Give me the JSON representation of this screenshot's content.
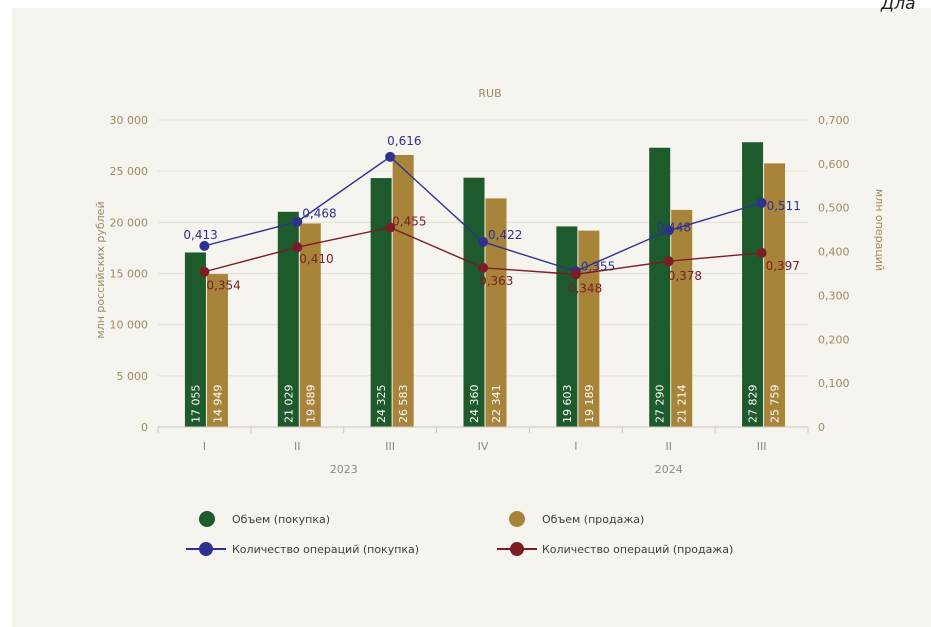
{
  "header": {
    "corner_text": "Дла"
  },
  "colors": {
    "volume_buy": "#1d5a2c",
    "volume_sell": "#a8843a",
    "count_buy": "#2e3192",
    "count_sell": "#7a1e23",
    "grid": "#e4e0d6"
  },
  "chart_data": {
    "type": "bar",
    "unit_label": "RUB",
    "categories": [
      "I",
      "II",
      "III",
      "IV",
      "I",
      "II",
      "III"
    ],
    "groups": [
      {
        "label": "2023",
        "span": [
          0,
          3
        ]
      },
      {
        "label": "2024",
        "span": [
          4,
          6
        ]
      }
    ],
    "y_left": {
      "label": "млн российских рублей",
      "ylim": [
        0,
        30000
      ],
      "ticks": [
        0,
        5000,
        10000,
        15000,
        20000,
        25000,
        30000
      ],
      "tick_labels": [
        "0",
        "5 000",
        "10 000",
        "15 000",
        "20 000",
        "25 000",
        "30 000"
      ]
    },
    "y_right": {
      "label": "млн операций",
      "ylim": [
        0,
        0.7
      ],
      "ticks": [
        0,
        0.1,
        0.2,
        0.3,
        0.4,
        0.5,
        0.6,
        0.7
      ],
      "tick_labels": [
        "0",
        "0,100",
        "0,200",
        "0,300",
        "0,400",
        "0,500",
        "0,600",
        "0,700"
      ]
    },
    "bar_series": [
      {
        "name": "Объем (покупка)",
        "values": [
          17055,
          21029,
          24325,
          24360,
          19603,
          27290,
          27829
        ],
        "labels": [
          "17 055",
          "21 029",
          "24 325",
          "24 360",
          "19 603",
          "27 290",
          "27 829"
        ]
      },
      {
        "name": "Объем (продажа)",
        "values": [
          14949,
          19889,
          26583,
          22341,
          19189,
          21214,
          25759
        ],
        "labels": [
          "14 949",
          "19 889",
          "26 583",
          "22 341",
          "19 189",
          "21 214",
          "25 759"
        ]
      }
    ],
    "line_series": [
      {
        "name": "Количество операций (покупка)",
        "values": [
          0.413,
          0.468,
          0.616,
          0.422,
          0.355,
          0.448,
          0.511
        ],
        "labels": [
          "0,413",
          "0,468",
          "0,616",
          "0,422",
          "0,355",
          "0,448",
          "0,511"
        ]
      },
      {
        "name": "Количество операций (продажа)",
        "values": [
          0.354,
          0.41,
          0.455,
          0.363,
          0.348,
          0.378,
          0.397
        ],
        "labels": [
          "0,354",
          "0,410",
          "0,455",
          "0,363",
          "0,348",
          "0,378",
          "0,397"
        ]
      }
    ],
    "grid": true,
    "legend": "bottom"
  }
}
